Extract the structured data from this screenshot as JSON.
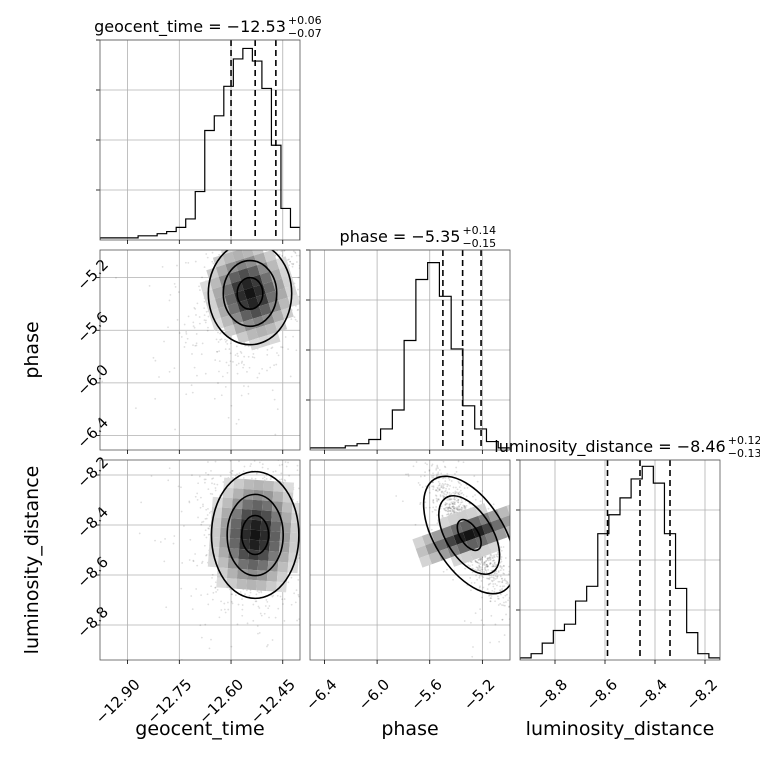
{
  "chart_data": {
    "type": "corner",
    "parameters": [
      "geocent_time",
      "phase",
      "luminosity_distance"
    ],
    "titles": [
      {
        "name": "geocent_time",
        "median": "−12.53",
        "plus": "+0.06",
        "minus": "−0.07"
      },
      {
        "name": "phase",
        "median": "−5.35",
        "plus": "+0.14",
        "minus": "−0.15"
      },
      {
        "name": "luminosity_distance",
        "median": "−8.46",
        "plus": "+0.12",
        "minus": "−0.13"
      }
    ],
    "ranges": {
      "geocent_time": [
        -12.98,
        -12.4
      ],
      "phase": [
        -6.51,
        -4.99
      ],
      "luminosity_distance": [
        -8.94,
        -8.14
      ]
    },
    "ticks": {
      "geocent_time": [
        -12.9,
        -12.75,
        -12.6,
        -12.45
      ],
      "phase": [
        -6.4,
        -6.0,
        -5.6,
        -5.2
      ],
      "luminosity_distance": [
        -8.8,
        -8.6,
        -8.4,
        -8.2
      ]
    },
    "tick_labels": {
      "geocent_time": [
        "−12.90",
        "−12.75",
        "−12.60",
        "−12.45"
      ],
      "phase": [
        "−6.4",
        "−6.0",
        "−5.6",
        "−5.2"
      ],
      "luminosity_distance": [
        "−8.8",
        "−8.6",
        "−8.4",
        "−8.2"
      ]
    },
    "quantiles": {
      "geocent_time": [
        -12.6,
        -12.53,
        -12.47
      ],
      "phase": [
        -5.5,
        -5.35,
        -5.21
      ],
      "luminosity_distance": [
        -8.59,
        -8.46,
        -8.34
      ]
    },
    "histograms": {
      "geocent_time": [
        0.01,
        0.01,
        0.01,
        0.01,
        0.02,
        0.02,
        0.03,
        0.04,
        0.06,
        0.1,
        0.23,
        0.52,
        0.59,
        0.73,
        0.86,
        0.91,
        0.85,
        0.72,
        0.45,
        0.15,
        0.06
      ],
      "phase": [
        0.01,
        0.01,
        0.01,
        0.02,
        0.03,
        0.05,
        0.1,
        0.19,
        0.52,
        0.81,
        0.89,
        0.73,
        0.48,
        0.21,
        0.1,
        0.04,
        0.01
      ],
      "luminosity_distance": [
        0.01,
        0.03,
        0.08,
        0.14,
        0.17,
        0.28,
        0.35,
        0.6,
        0.69,
        0.77,
        0.86,
        0.92,
        0.84,
        0.6,
        0.34,
        0.13,
        0.03,
        0.01
      ]
    },
    "contour_peaks": [
      {
        "x": "geocent_time",
        "y": "phase",
        "cx": -12.545,
        "cy": -5.32,
        "sx": 0.062,
        "sy": 0.2,
        "rho": 0.25
      },
      {
        "x": "geocent_time",
        "y": "luminosity_distance",
        "cx": -12.53,
        "cy": -8.44,
        "sx": 0.065,
        "sy": 0.13,
        "rho": -0.05
      },
      {
        "x": "phase",
        "y": "luminosity_distance",
        "cx": -5.3,
        "cy": -8.44,
        "sx": 0.14,
        "sy": 0.12,
        "rho": -0.85
      }
    ],
    "grid": true,
    "legend": "none"
  }
}
